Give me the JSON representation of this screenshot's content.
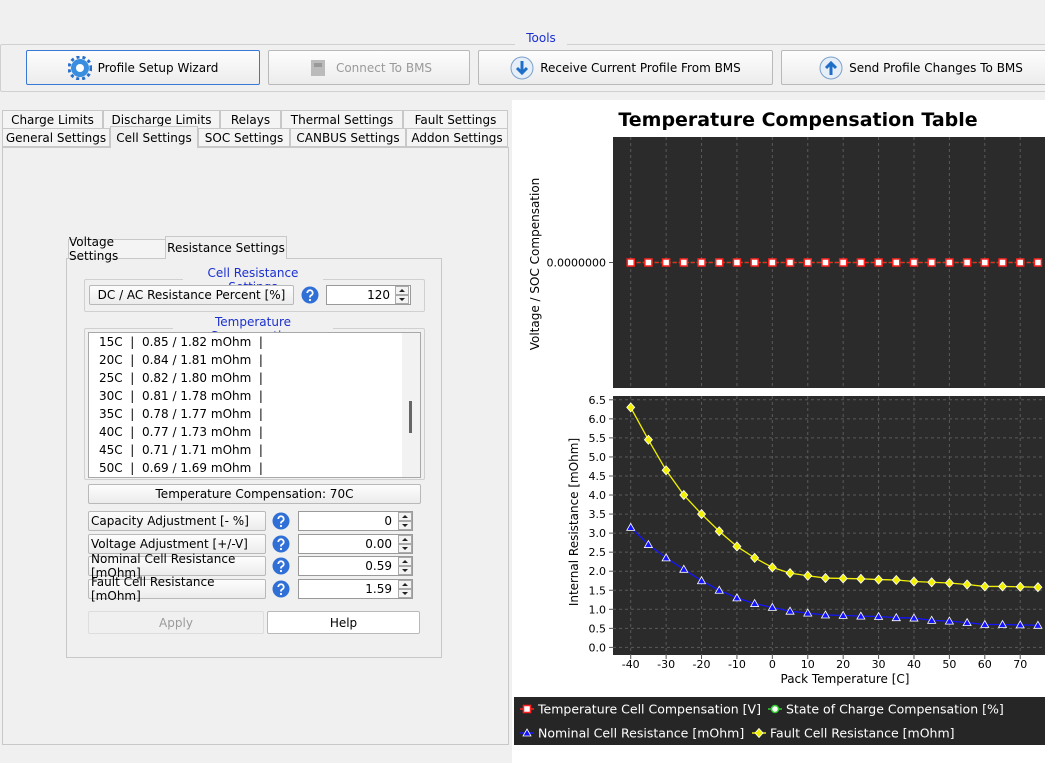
{
  "toolbar": {
    "title": "Tools",
    "buttons": [
      "Profile Setup Wizard",
      "Connect To BMS",
      "Receive Current Profile From BMS",
      "Send Profile Changes To BMS"
    ]
  },
  "tabs": {
    "row1": [
      "Charge Limits",
      "Discharge Limits",
      "Relays",
      "Thermal Settings",
      "Fault Settings"
    ],
    "row2": [
      "General Settings",
      "Cell Settings",
      "SOC Settings",
      "CANBUS Settings",
      "Addon Settings"
    ]
  },
  "subtabs": [
    "Voltage Settings",
    "Resistance Settings"
  ],
  "cell_resistance": {
    "title": "Cell Resistance Settings",
    "label": "DC / AC Resistance Percent [%]",
    "value": "120"
  },
  "temperature_compensation": {
    "title": "Temperature Compensation",
    "items": [
      "15C  |  0.85 / 1.82 mOhm  |",
      "20C  |  0.84 / 1.81 mOhm  |",
      "25C  |  0.82 / 1.80 mOhm  |",
      "30C  |  0.81 / 1.78 mOhm  |",
      "35C  |  0.78 / 1.77 mOhm  |",
      "40C  |  0.77 / 1.73 mOhm  |",
      "45C  |  0.71 / 1.71 mOhm  |",
      "50C  |  0.69 / 1.69 mOhm  |"
    ],
    "selected": "Temperature Compensation: 70C"
  },
  "fields": [
    {
      "label": "Capacity Adjustment [- %]",
      "value": "0"
    },
    {
      "label": "Voltage Adjustment [+/-V]",
      "value": "0.00"
    },
    {
      "label": "Nominal Cell Resistance [mOhm]",
      "value": "0.59"
    },
    {
      "label": "Fault Cell Resistance [mOhm]",
      "value": "1.59"
    }
  ],
  "buttons": [
    "Apply",
    "Help"
  ],
  "chart": {
    "type": "line",
    "title": "Temperature Compensation Table",
    "top": {
      "ylabel": "Voltage / SOC Compensation",
      "ylim": [
        -1,
        1
      ],
      "yticks": [
        {
          "value": 0,
          "label": "0.0000000"
        }
      ]
    },
    "bottom": {
      "ylabel": "Internal Resistance [mOhm]",
      "xlabel": "Pack Temperature [C]",
      "ylim": [
        -0.2,
        6.6
      ],
      "yticks": [
        {
          "value": 0,
          "label": "0.0"
        },
        {
          "value": 0.5,
          "label": "0.5"
        },
        {
          "value": 1,
          "label": "1.0"
        },
        {
          "value": 1.5,
          "label": "1.5"
        },
        {
          "value": 2,
          "label": "2.0"
        },
        {
          "value": 2.5,
          "label": "2.5"
        },
        {
          "value": 3,
          "label": "3.0"
        },
        {
          "value": 3.5,
          "label": "3.5"
        },
        {
          "value": 4,
          "label": "4.0"
        },
        {
          "value": 4.5,
          "label": "4.5"
        },
        {
          "value": 5,
          "label": "5.0"
        },
        {
          "value": 5.5,
          "label": "5.5"
        },
        {
          "value": 6,
          "label": "6.0"
        },
        {
          "value": 6.5,
          "label": "6.5"
        }
      ]
    },
    "xlim": [
      -45,
      77
    ],
    "xticks": [
      -40,
      -30,
      -20,
      -10,
      0,
      10,
      20,
      30,
      40,
      50,
      60,
      70
    ],
    "grid": true,
    "x": [
      -40,
      -35,
      -30,
      -25,
      -20,
      -15,
      -10,
      -5,
      0,
      5,
      10,
      15,
      20,
      25,
      30,
      35,
      40,
      45,
      50,
      55,
      60,
      65,
      70,
      75
    ],
    "series": [
      {
        "name": "State of Charge Compensation [%]",
        "color": "#33cc33",
        "marker": "circle",
        "panel": "top",
        "values": [
          0,
          0,
          0,
          0,
          0,
          0,
          0,
          0,
          0,
          0,
          0,
          0,
          0,
          0,
          0,
          0,
          0,
          0,
          0,
          0,
          0,
          0,
          0,
          0
        ]
      },
      {
        "name": "Temperature Cell Compensation [V]",
        "color": "#ff2020",
        "marker": "square",
        "panel": "top",
        "values": [
          0,
          0,
          0,
          0,
          0,
          0,
          0,
          0,
          0,
          0,
          0,
          0,
          0,
          0,
          0,
          0,
          0,
          0,
          0,
          0,
          0,
          0,
          0,
          0
        ]
      },
      {
        "name": "Nominal Cell Resistance [mOhm]",
        "color": "#1414ff",
        "marker": "triangle",
        "panel": "bottom",
        "values": [
          3.15,
          2.7,
          2.35,
          2.05,
          1.75,
          1.5,
          1.3,
          1.15,
          1.05,
          0.95,
          0.9,
          0.85,
          0.84,
          0.82,
          0.81,
          0.78,
          0.77,
          0.71,
          0.69,
          0.65,
          0.6,
          0.6,
          0.59,
          0.58
        ]
      },
      {
        "name": "Fault Cell Resistance [mOhm]",
        "color": "#f0f000",
        "marker": "diamond",
        "panel": "bottom",
        "values": [
          6.3,
          5.45,
          4.65,
          4.0,
          3.5,
          3.05,
          2.65,
          2.35,
          2.1,
          1.95,
          1.88,
          1.82,
          1.81,
          1.8,
          1.78,
          1.77,
          1.73,
          1.71,
          1.69,
          1.65,
          1.6,
          1.6,
          1.59,
          1.58
        ]
      }
    ]
  }
}
